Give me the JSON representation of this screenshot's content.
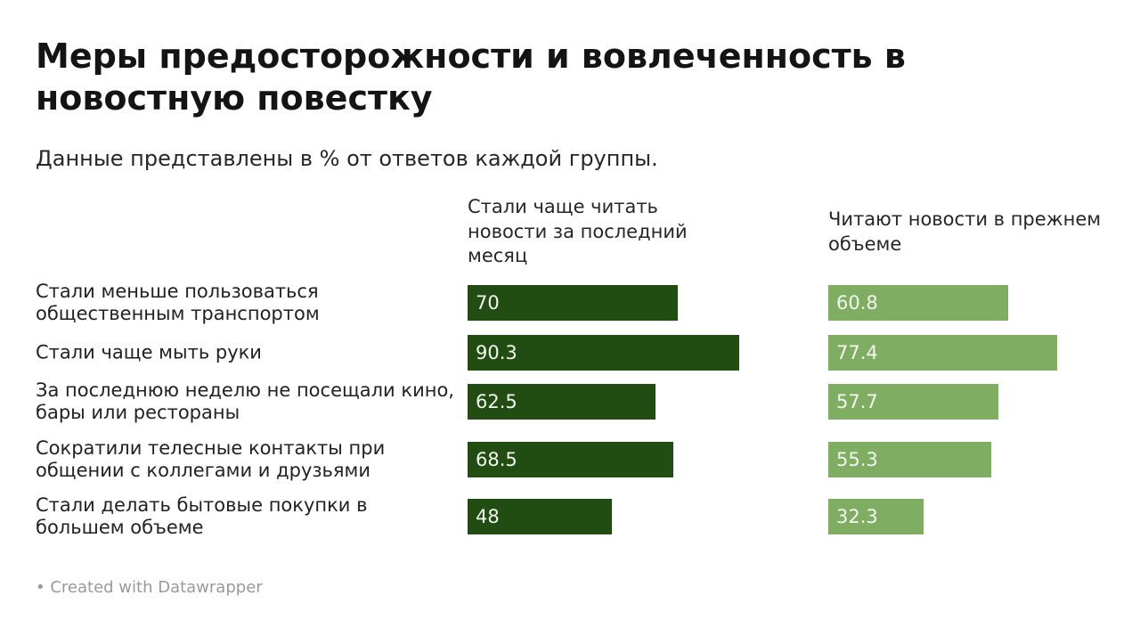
{
  "title": "Меры предосторожности и вовлеченность в новостную повестку",
  "subtitle": "Данные представлены в % от ответов каждой группы.",
  "footer": "• Created with Datawrapper",
  "colors": {
    "series1": "#214d12",
    "series2": "#7fae63",
    "value_text": "#f3f7ef"
  },
  "chart_data": {
    "type": "bar",
    "orientation": "horizontal",
    "categories": [
      "Стали меньше пользоваться общественным транспортом",
      "Стали чаще мыть руки",
      "За последнюю неделю не посещали кино, бары или рестораны",
      "Сократили телесные контакты при общении с коллегами и друзьями",
      "Стали делать бытовые покупки в большем объеме"
    ],
    "series": [
      {
        "name": "Стали чаще читать новости за последний месяц",
        "values": [
          70,
          90.3,
          62.5,
          68.5,
          48
        ]
      },
      {
        "name": "Читают новости в прежнем объеме",
        "values": [
          60.8,
          77.4,
          57.7,
          55.3,
          32.3
        ]
      }
    ],
    "value_labels": true,
    "xlim": [
      0,
      100
    ],
    "legend_position": "column-headers",
    "grid": false
  }
}
